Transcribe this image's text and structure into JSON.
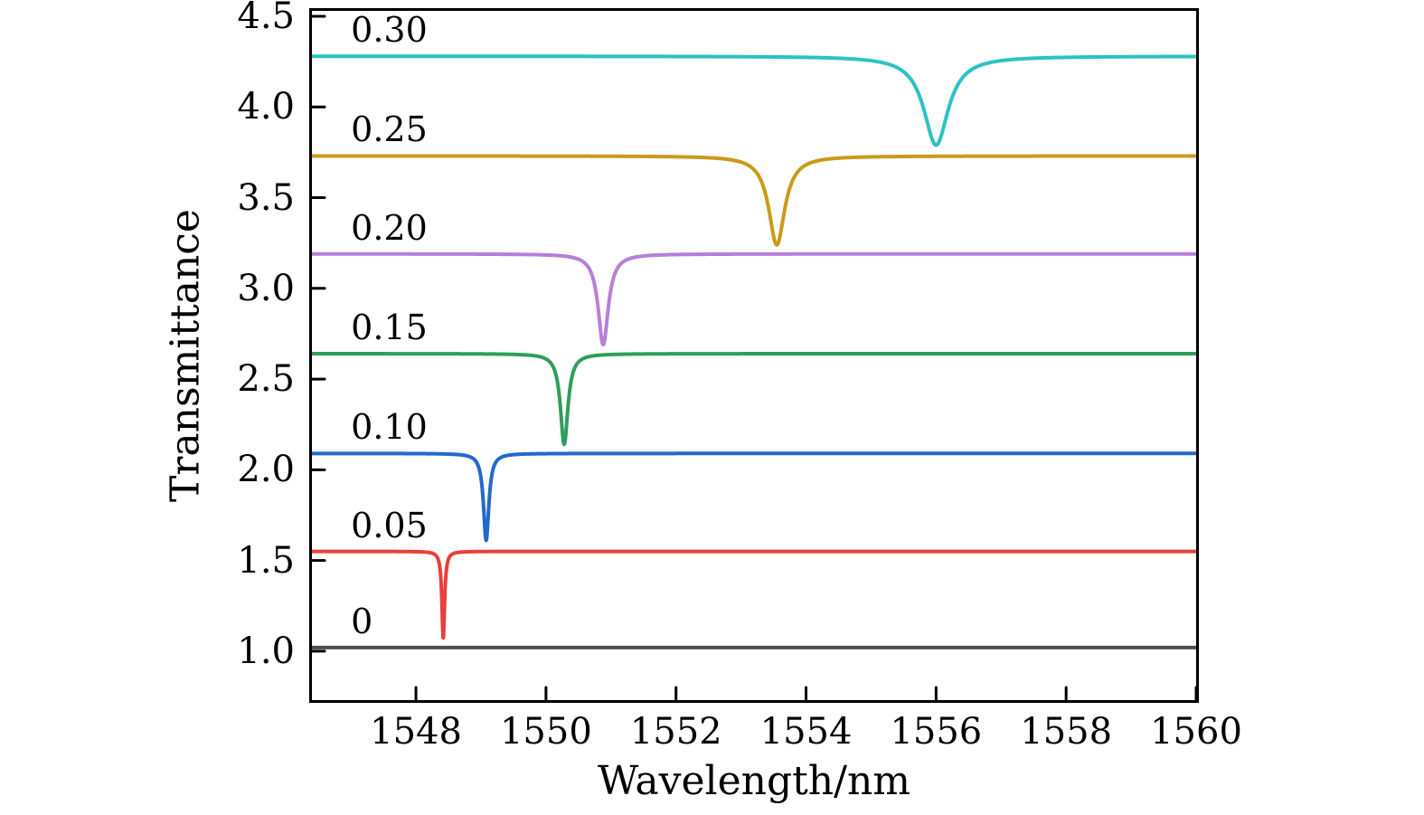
{
  "figure": {
    "background": "#ffffff",
    "axis_color": "#000000"
  },
  "chart_data": {
    "type": "line",
    "title": "",
    "xlabel": "Wavelength/nm",
    "ylabel": "Transmittance",
    "xlim": [
      1546.4,
      1560
    ],
    "ylim": [
      0.73,
      4.53
    ],
    "grid": false,
    "legend_position": "none",
    "x_ticks": [
      {
        "value": 1548,
        "label": "1548"
      },
      {
        "value": 1550,
        "label": "1550"
      },
      {
        "value": 1552,
        "label": "1552"
      },
      {
        "value": 1554,
        "label": "1554"
      },
      {
        "value": 1556,
        "label": "1556"
      },
      {
        "value": 1558,
        "label": "1558"
      },
      {
        "value": 1560,
        "label": "1560"
      }
    ],
    "y_ticks": [
      {
        "value": 1.0,
        "label": "1.0"
      },
      {
        "value": 1.5,
        "label": "1.5"
      },
      {
        "value": 2.0,
        "label": "2.0"
      },
      {
        "value": 2.5,
        "label": "2.5"
      },
      {
        "value": 3.0,
        "label": "3.0"
      },
      {
        "value": 3.5,
        "label": "3.5"
      },
      {
        "value": 4.0,
        "label": "4.0"
      },
      {
        "value": 4.5,
        "label": "4.5"
      }
    ],
    "series_label_x": 1547.0,
    "series": [
      {
        "label": "0",
        "baseline": 1.02,
        "dip_center": null,
        "dip_depth": 0.0,
        "dip_fwhm": 0.0,
        "color": "#4d4d4d"
      },
      {
        "label": "0.05",
        "baseline": 1.55,
        "dip_center": 1548.42,
        "dip_depth": 0.48,
        "dip_fwhm": 0.05,
        "color": "#e8403a"
      },
      {
        "label": "0.10",
        "baseline": 2.09,
        "dip_center": 1549.08,
        "dip_depth": 0.48,
        "dip_fwhm": 0.1,
        "color": "#2268cf"
      },
      {
        "label": "0.15",
        "baseline": 2.64,
        "dip_center": 1550.28,
        "dip_depth": 0.5,
        "dip_fwhm": 0.14,
        "color": "#2f9e5b"
      },
      {
        "label": "0.20",
        "baseline": 3.19,
        "dip_center": 1550.88,
        "dip_depth": 0.5,
        "dip_fwhm": 0.19,
        "color": "#b77fd9"
      },
      {
        "label": "0.25",
        "baseline": 3.73,
        "dip_center": 1553.55,
        "dip_depth": 0.49,
        "dip_fwhm": 0.3,
        "color": "#cc9a1a"
      },
      {
        "label": "0.30",
        "baseline": 4.28,
        "dip_center": 1556.0,
        "dip_depth": 0.49,
        "dip_fwhm": 0.46,
        "color": "#2bc2c6"
      }
    ]
  }
}
